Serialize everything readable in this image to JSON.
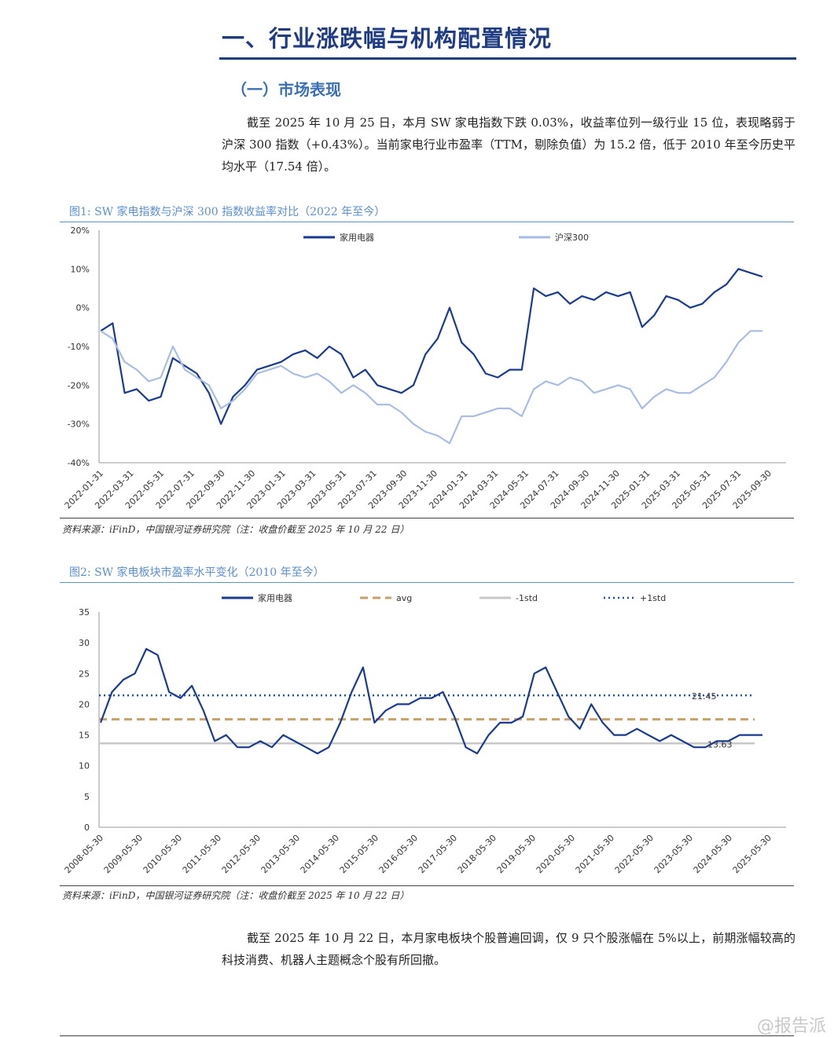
{
  "heading": "一、行业涨跌幅与机构配置情况",
  "subheading": "（一）市场表现",
  "paragraph1": "截至 2025 年 10 月 25 日，本月 SW 家电指数下跌 0.03%，收益率位列一级行业 15 位，表现略弱于沪深 300 指数（+0.43%）。当前家电行业市盈率（TTM，剔除负值）为 15.2 倍，低于 2010 年至今历史平均水平（17.54 倍）。",
  "paragraph2": "截至 2025 年 10 月 22 日，本月家电板块个股普遍回调，仅 9 只个股涨幅在 5%以上，前期涨幅较高的科技消费、机器人主题概念个股有所回撤。",
  "watermark": "@报告派",
  "colors": {
    "accent": "#1f3b82",
    "series_main": "#1a3a93",
    "series_secondary": "#a9bde4",
    "avg": "#c8a06a",
    "minus_std": "#c8c8c8",
    "plus_std": "#1f4fa6"
  },
  "chart_data": [
    {
      "type": "line",
      "figure_title": "图1: SW 家电指数与沪深 300 指数收益率对比（2022 年至今）",
      "source": "资料来源：iFinD，中国银河证券研究院（注：收盘价截至 2025 年 10 月 22 日）",
      "y_ticks": [
        "20%",
        "10%",
        "0%",
        "-10%",
        "-20%",
        "-30%",
        "-40%"
      ],
      "ylim": [
        -40,
        20
      ],
      "x_ticks": [
        "2022-01-31",
        "2022-03-31",
        "2022-05-31",
        "2022-07-31",
        "2022-09-30",
        "2022-11-30",
        "2023-01-31",
        "2023-03-31",
        "2023-05-31",
        "2023-07-31",
        "2023-09-30",
        "2023-11-30",
        "2024-01-31",
        "2024-03-31",
        "2024-05-31",
        "2024-07-31",
        "2024-09-30",
        "2024-11-30",
        "2025-01-31",
        "2025-03-31",
        "2025-05-31",
        "2025-07-31",
        "2025-09-30"
      ],
      "legend": "top",
      "series": [
        {
          "name": "家用电器",
          "values": [
            -6,
            -4,
            -22,
            -21,
            -24,
            -23,
            -13,
            -15,
            -17,
            -22,
            -30,
            -23,
            -20,
            -16,
            -15,
            -14,
            -12,
            -11,
            -13,
            -10,
            -12,
            -18,
            -16,
            -20,
            -21,
            -22,
            -20,
            -12,
            -8,
            0,
            -9,
            -12,
            -17,
            -18,
            -16,
            -16,
            5,
            3,
            4,
            1,
            3,
            2,
            4,
            3,
            4,
            -5,
            -2,
            3,
            2,
            0,
            1,
            4,
            6,
            10,
            9,
            8
          ]
        },
        {
          "name": "沪深300",
          "values": [
            -6,
            -8,
            -14,
            -16,
            -19,
            -18,
            -10,
            -16,
            -18,
            -20,
            -26,
            -24,
            -21,
            -17,
            -16,
            -15,
            -17,
            -18,
            -17,
            -19,
            -22,
            -20,
            -22,
            -25,
            -25,
            -27,
            -30,
            -32,
            -33,
            -35,
            -28,
            -28,
            -27,
            -26,
            -26,
            -28,
            -21,
            -19,
            -20,
            -18,
            -19,
            -22,
            -21,
            -20,
            -21,
            -26,
            -23,
            -21,
            -22,
            -22,
            -20,
            -18,
            -14,
            -9,
            -6,
            -6
          ]
        }
      ]
    },
    {
      "type": "line",
      "figure_title": "图2: SW 家电板块市盈率水平变化（2010 年至今）",
      "source": "资料来源：iFinD，中国银河证券研究院（注：收盘价截至 2025 年 10 月 22 日）",
      "y_ticks": [
        "35",
        "30",
        "25",
        "20",
        "15",
        "10",
        "5",
        "0"
      ],
      "ylim": [
        0,
        35
      ],
      "x_ticks": [
        "2008-05-30",
        "2009-05-30",
        "2010-05-30",
        "2011-05-30",
        "2012-05-30",
        "2013-05-30",
        "2014-05-30",
        "2015-05-30",
        "2016-05-30",
        "2017-05-30",
        "2018-05-30",
        "2019-05-30",
        "2020-05-30",
        "2021-05-30",
        "2022-05-30",
        "2023-05-30",
        "2024-05-30",
        "2025-05-30"
      ],
      "legend": "top",
      "annotations": [
        "21.45",
        "13.63"
      ],
      "reference_lines": {
        "avg": 17.54,
        "minus_std": 13.63,
        "plus_std": 21.45
      },
      "series": [
        {
          "name": "家用电器",
          "values": [
            17,
            22,
            24,
            25,
            29,
            28,
            22,
            21,
            23,
            19,
            14,
            15,
            13,
            13,
            14,
            13,
            15,
            14,
            13,
            12,
            13,
            17,
            22,
            26,
            17,
            19,
            20,
            20,
            21,
            21,
            22,
            18,
            13,
            12,
            15,
            17,
            17,
            18,
            25,
            26,
            22,
            18,
            16,
            20,
            17,
            15,
            15,
            16,
            15,
            14,
            15,
            14,
            13,
            13,
            14,
            14,
            15,
            15,
            15
          ]
        },
        {
          "name": "avg",
          "values": []
        },
        {
          "name": "-1std",
          "values": []
        },
        {
          "name": "+1std",
          "values": []
        }
      ]
    }
  ]
}
